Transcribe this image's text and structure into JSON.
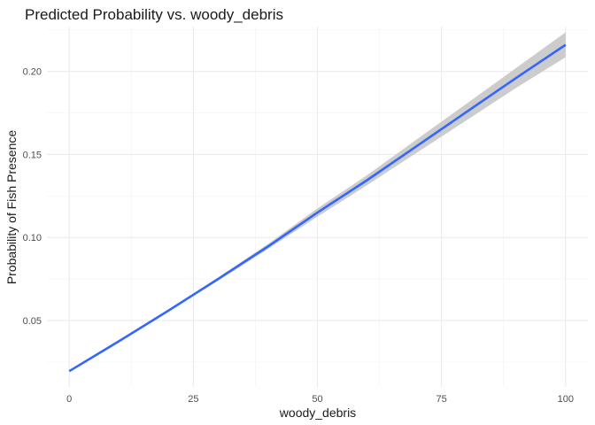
{
  "chart_data": {
    "type": "line",
    "title": "Predicted Probability vs. woody_debris",
    "xlabel": "woody_debris",
    "ylabel": "Probability of Fish Presence",
    "xlim": [
      -4.5,
      104.5
    ],
    "ylim": [
      0.01,
      0.227
    ],
    "x_ticks": [
      0,
      25,
      50,
      75,
      100
    ],
    "x_tick_labels": [
      "0",
      "25",
      "50",
      "75",
      "100"
    ],
    "y_ticks": [
      0.05,
      0.1,
      0.15,
      0.2
    ],
    "y_tick_labels": [
      "0.05",
      "0.10",
      "0.15",
      "0.20"
    ],
    "grid": true,
    "legend": "none",
    "colors": {
      "line": "#3366ff",
      "ribbon": "#cccccc"
    },
    "series": [
      {
        "x": [
          0,
          10,
          20,
          30,
          40,
          50,
          60,
          70,
          80,
          90,
          100
        ],
        "y": [
          0.0195,
          0.0375,
          0.056,
          0.075,
          0.0945,
          0.115,
          0.1345,
          0.155,
          0.1755,
          0.196,
          0.216
        ],
        "ymin": [
          0.019,
          0.037,
          0.0555,
          0.074,
          0.093,
          0.1125,
          0.1315,
          0.151,
          0.1705,
          0.19,
          0.2085
        ],
        "ymax": [
          0.02,
          0.038,
          0.0565,
          0.076,
          0.096,
          0.1175,
          0.1375,
          0.159,
          0.1805,
          0.202,
          0.2235
        ]
      }
    ]
  }
}
